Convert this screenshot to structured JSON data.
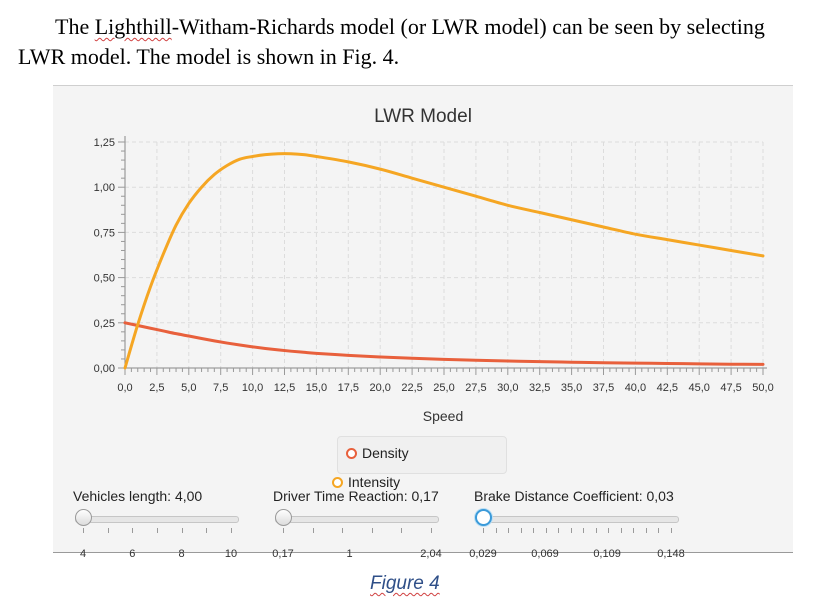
{
  "document": {
    "para_line1_before": "The ",
    "para_line1_link": "Lighthill",
    "para_line1_after": "-Witham-Richards model (or LWR model) can be seen by selecting",
    "para_line2": "LWR model. The model is shown in Fig. 4.",
    "caption": "Figure 4"
  },
  "chart_data": {
    "type": "line",
    "title": "LWR Model",
    "xlabel": "Speed",
    "ylabel": "",
    "xlim": [
      0,
      50
    ],
    "ylim": [
      0,
      1.25
    ],
    "x_ticks": [
      "0,0",
      "2,5",
      "5,0",
      "7,5",
      "10,0",
      "12,5",
      "15,0",
      "17,5",
      "20,0",
      "22,5",
      "25,0",
      "27,5",
      "30,0",
      "32,5",
      "35,0",
      "37,5",
      "40,0",
      "42,5",
      "45,0",
      "47,5",
      "50,0"
    ],
    "y_ticks": [
      "0,00",
      "0,25",
      "0,50",
      "0,75",
      "1,00",
      "1,25"
    ],
    "grid": true,
    "legend_position": "bottom",
    "x": [
      0,
      1,
      2,
      3,
      4,
      5,
      6,
      7,
      8,
      9,
      10,
      11,
      12,
      13,
      14,
      15,
      17.5,
      20,
      22.5,
      25,
      27.5,
      30,
      32.5,
      35,
      37.5,
      40,
      42.5,
      45,
      47.5,
      50
    ],
    "series": [
      {
        "name": "Density",
        "color": "#e8603c",
        "values": [
          0.25,
          0.235,
          0.22,
          0.205,
          0.19,
          0.177,
          0.163,
          0.15,
          0.138,
          0.127,
          0.117,
          0.108,
          0.1,
          0.093,
          0.087,
          0.081,
          0.07,
          0.061,
          0.054,
          0.048,
          0.043,
          0.039,
          0.035,
          0.032,
          0.029,
          0.027,
          0.025,
          0.023,
          0.021,
          0.02
        ]
      },
      {
        "name": "Intensity",
        "color": "#f5a623",
        "values": [
          0.0,
          0.24,
          0.45,
          0.63,
          0.79,
          0.91,
          1.0,
          1.07,
          1.12,
          1.155,
          1.17,
          1.18,
          1.185,
          1.185,
          1.18,
          1.17,
          1.14,
          1.1,
          1.05,
          1.0,
          0.95,
          0.9,
          0.86,
          0.82,
          0.78,
          0.74,
          0.71,
          0.68,
          0.65,
          0.62
        ]
      }
    ]
  },
  "controls": {
    "vehicles_length": {
      "label": "Vehicles length: 4,00",
      "ticks": [
        "4",
        "6",
        "8",
        "10"
      ],
      "value_fraction": 0.0
    },
    "driver_time_reaction": {
      "label": "Driver Time Reaction: 0,17",
      "ticks": [
        "0,17",
        "1",
        "2,04"
      ],
      "value_fraction": 0.0
    },
    "brake_distance": {
      "label": "Brake Distance Coefficient: 0,03",
      "ticks": [
        "0,029",
        "0,069",
        "0,109",
        "0,148"
      ],
      "value_fraction": 0.0
    }
  }
}
